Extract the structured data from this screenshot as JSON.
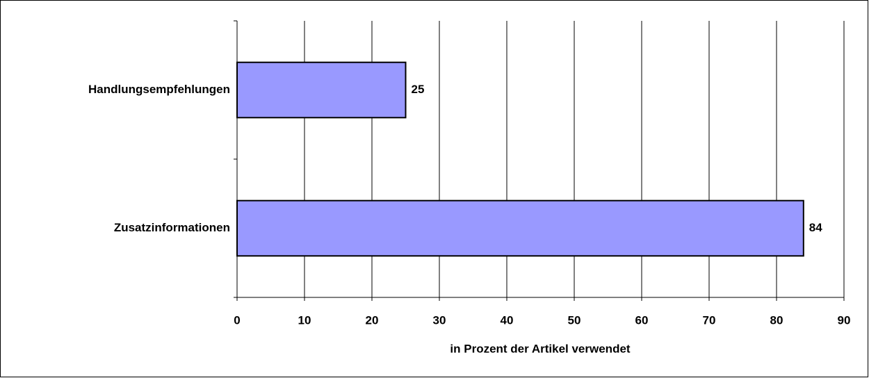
{
  "chart_data": {
    "type": "bar",
    "orientation": "horizontal",
    "categories": [
      "Handlungsempfehlungen",
      "Zusatzinformationen"
    ],
    "values": [
      25,
      84
    ],
    "color": "#9999ff",
    "xlabel": "in Prozent der Artikel verwendet",
    "xlim": [
      0,
      90
    ],
    "xticks": [
      0,
      10,
      20,
      30,
      40,
      50,
      60,
      70,
      80,
      90
    ],
    "grid": true
  }
}
